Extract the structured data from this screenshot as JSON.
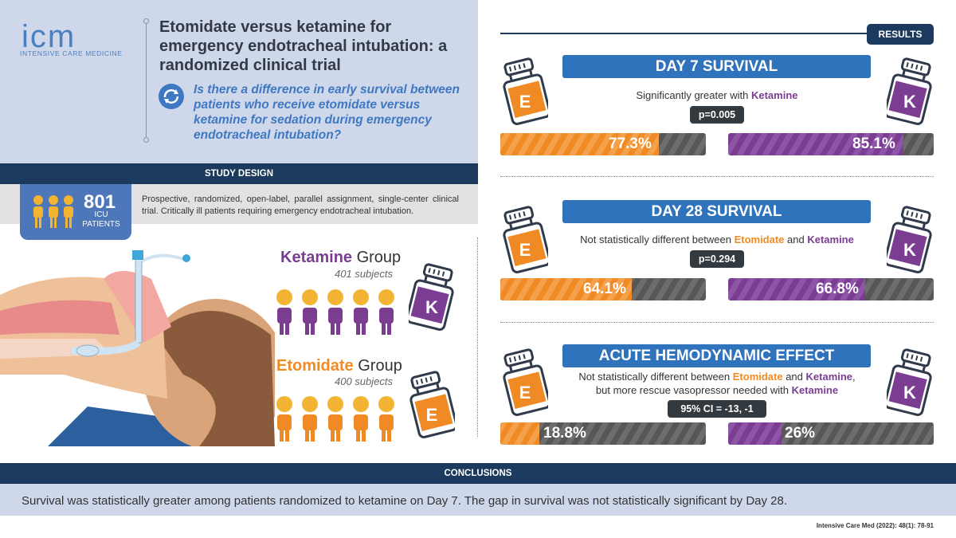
{
  "logo": {
    "mark": "icm",
    "subtitle": "INTENSIVE CARE MEDICINE"
  },
  "header": {
    "title": "Etomidate versus ketamine for emergency endotracheal intubation: a randomized clinical trial",
    "question": "Is there a difference in early survival between patients who receive etomidate versus ketamine for sedation during emergency endotracheal intubation?"
  },
  "study_design": {
    "heading": "STUDY DESIGN",
    "count": "801",
    "count_label": "ICU PATIENTS",
    "description": "Prospective, randomized, open-label, parallel assignment, single-center clinical trial. Critically ill patients requiring emergency endotracheal intubation."
  },
  "groups": {
    "ketamine": {
      "name": "Ketamine",
      "word": "Group",
      "subjects": "401 subjects",
      "letter": "K"
    },
    "etomidate": {
      "name": "Etomidate",
      "word": "Group",
      "subjects": "400 subjects",
      "letter": "E"
    }
  },
  "results": {
    "tab": "RESULTS",
    "sections": [
      {
        "title": "DAY 7 SURVIVAL",
        "desc_prefix": "Significantly greater with ",
        "desc_k": "Ketamine",
        "stat": "p=0.005",
        "e_value": "77.3%",
        "e_fraction": 0.773,
        "k_value": "85.1%",
        "k_fraction": 0.851
      },
      {
        "title": "DAY 28 SURVIVAL",
        "desc_prefix": "Not statistically different between ",
        "desc_e": "Etomidate",
        "desc_mid": " and ",
        "desc_k": "Ketamine",
        "stat": "p=0.294",
        "e_value": "64.1%",
        "e_fraction": 0.641,
        "k_value": "66.8%",
        "k_fraction": 0.668
      },
      {
        "title": "ACUTE HEMODYNAMIC EFFECT",
        "desc_prefix": "Not statistically different between ",
        "desc_e": "Etomidate",
        "desc_mid": " and ",
        "desc_k": "Ketamine",
        "desc_suffix": ",",
        "desc_line2": "but more rescue vasopressor needed with ",
        "desc_k2": "Ketamine",
        "stat": "95% CI = -13, -1",
        "e_value": "18.8%",
        "e_fraction": 0.188,
        "k_value": "26%",
        "k_fraction": 0.26
      }
    ]
  },
  "conclusions": {
    "heading": "CONCLUSIONS",
    "text": "Survival was statistically greater among patients randomized to ketamine on Day 7. The gap in survival was not statistically significant by Day 28."
  },
  "citation": "Intensive Care Med (2022): 48(1): 78-91",
  "colors": {
    "navy": "#1c3a5e",
    "blue": "#2f73bd",
    "orange": "#f08a24",
    "purple": "#7a3d91",
    "header_bg": "#cfd8ea"
  }
}
